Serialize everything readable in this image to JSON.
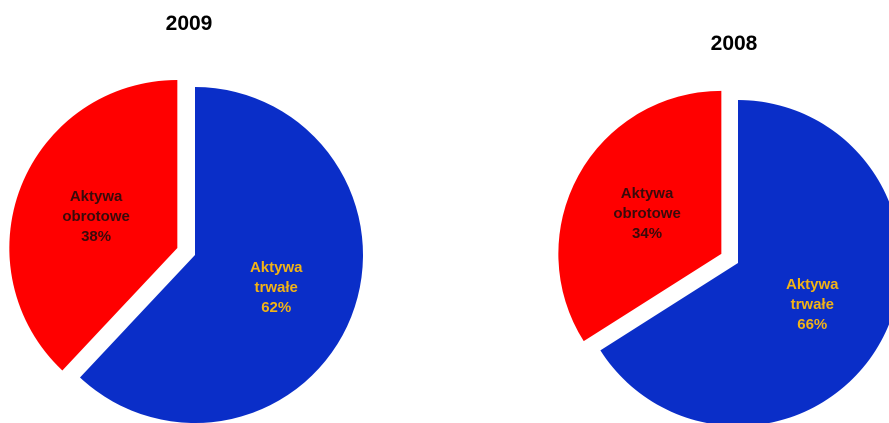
{
  "chart_data": [
    {
      "type": "pie",
      "title": "2009",
      "slices": [
        {
          "label_lines": [
            "Aktywa",
            "trwałe"
          ],
          "percent_text": "62%",
          "value": 62,
          "color": "#0a2ec8",
          "label_color": "#f2b315"
        },
        {
          "label_lines": [
            "Aktywa",
            "obrotowe"
          ],
          "percent_text": "38%",
          "value": 38,
          "color": "#ff0000",
          "label_color": "#3a0a0a"
        }
      ],
      "legend": "none",
      "exploded_slice": "Aktywa obrotowe"
    },
    {
      "type": "pie",
      "title": "2008",
      "slices": [
        {
          "label_lines": [
            "Aktywa",
            "trwałe"
          ],
          "percent_text": "66%",
          "value": 66,
          "color": "#0a2ec8",
          "label_color": "#f2b315"
        },
        {
          "label_lines": [
            "Aktywa",
            "obrotowe"
          ],
          "percent_text": "34%",
          "value": 34,
          "color": "#ff0000",
          "label_color": "#3a0a0a"
        }
      ],
      "legend": "none",
      "exploded_slice": "Aktywa obrotowe"
    }
  ]
}
